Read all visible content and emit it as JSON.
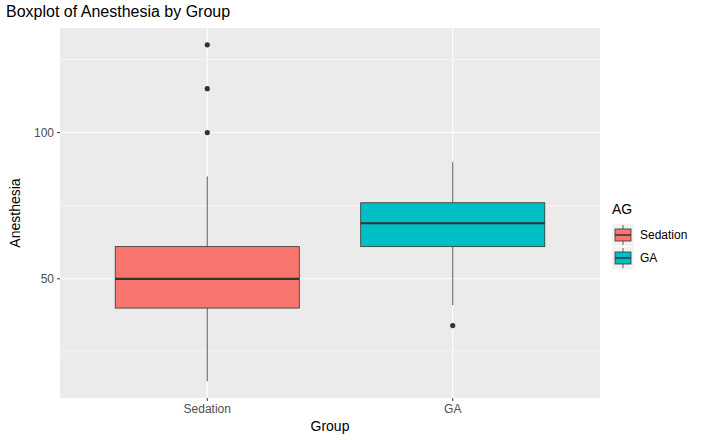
{
  "chart_data": {
    "type": "box",
    "title": "Boxplot of Anesthesia by Group",
    "x_label": "Group",
    "y_label": "Anesthesia",
    "legend_title": "AG",
    "categories": [
      "Sedation",
      "GA"
    ],
    "colors": [
      "#F8766D",
      "#00BFC4"
    ],
    "boxes": [
      {
        "min": 15,
        "q1": 40,
        "median": 50,
        "q3": 61,
        "max": 85,
        "outliers": [
          100,
          115,
          130
        ]
      },
      {
        "min": 41,
        "q1": 61,
        "median": 69,
        "q3": 76,
        "max": 90,
        "outliers": [
          34
        ]
      }
    ],
    "ylim": [
      9.25,
      135.75
    ],
    "yticks": [
      50,
      100
    ],
    "grid": true,
    "legend": "right"
  }
}
